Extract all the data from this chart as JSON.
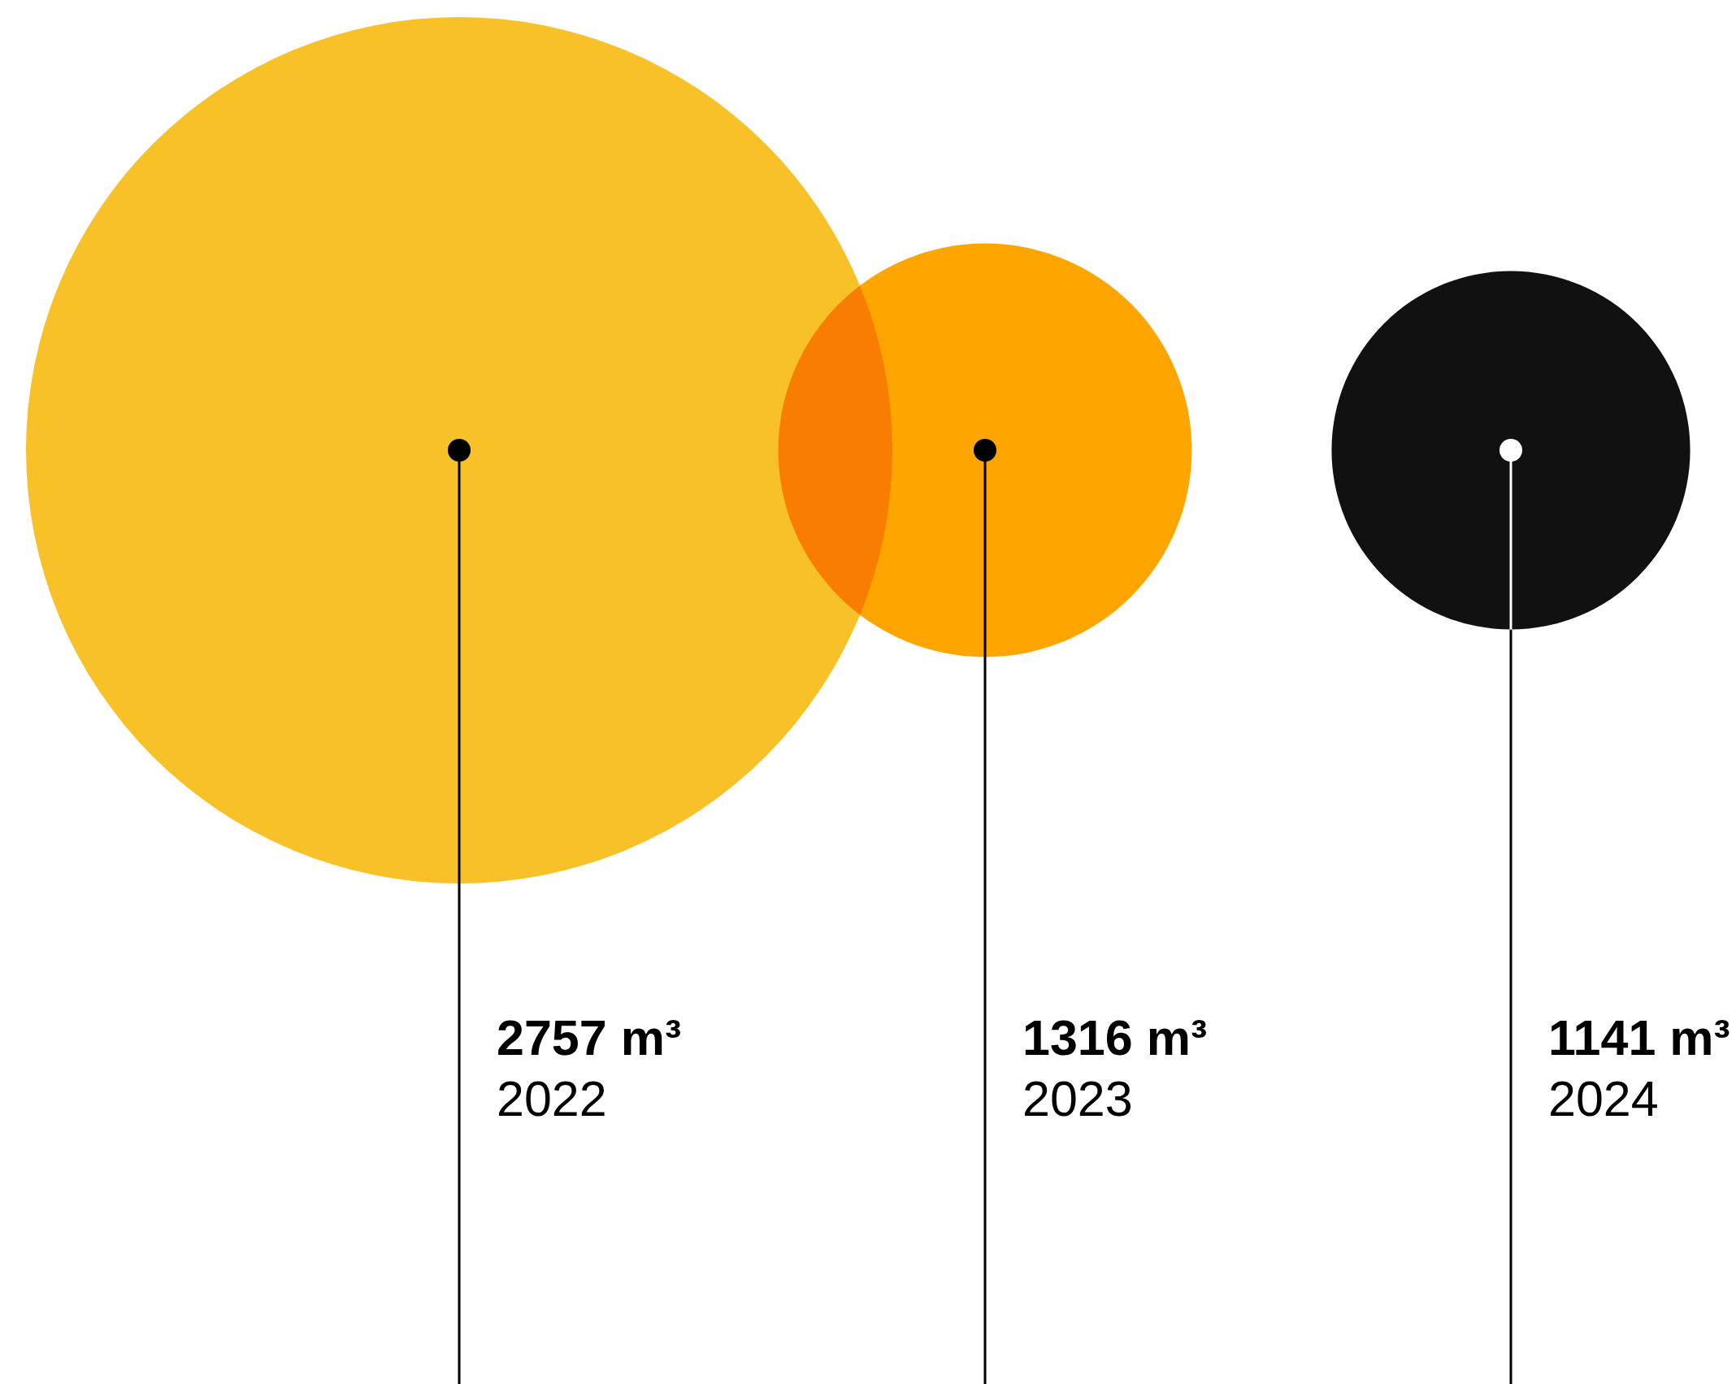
{
  "chart_data": {
    "type": "other",
    "categories": [
      "2022",
      "2023",
      "2024"
    ],
    "values": [
      2757,
      1316,
      1141
    ],
    "colors": [
      "#f8c127",
      "#ffa500",
      "#111111"
    ],
    "value_labels": [
      "2757 m³",
      "1316 m³",
      "1141 m³"
    ]
  }
}
